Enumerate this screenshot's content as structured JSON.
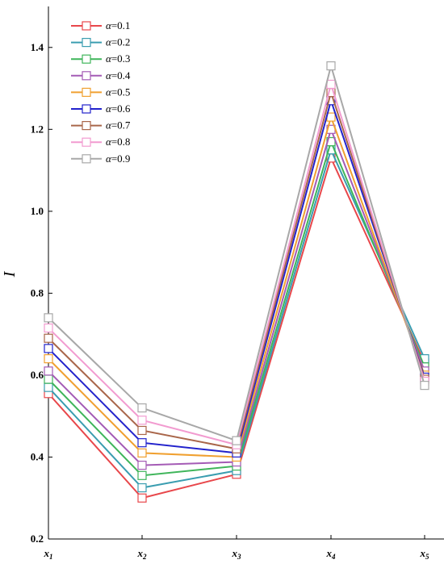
{
  "chart_data": {
    "type": "line",
    "title": "",
    "xlabel": "",
    "ylabel": "I",
    "ylim": [
      0.2,
      1.5
    ],
    "yticks": [
      0.2,
      0.4,
      0.6,
      0.8,
      1.0,
      1.2,
      1.4
    ],
    "ytick_labels": [
      "0.2",
      "0.4",
      "0.6",
      "0.8",
      "1.0",
      "1.2",
      "1.4"
    ],
    "categories": [
      {
        "base": "x",
        "sub": "1"
      },
      {
        "base": "x",
        "sub": "2"
      },
      {
        "base": "x",
        "sub": "3"
      },
      {
        "base": "x",
        "sub": "4"
      },
      {
        "base": "x",
        "sub": "5"
      }
    ],
    "legend_position": "top-left",
    "legend_symbol": "α",
    "series": [
      {
        "name": "=0.1",
        "color": "#e8474b",
        "values": [
          0.555,
          0.3,
          0.358,
          1.13,
          0.63
        ]
      },
      {
        "name": "=0.2",
        "color": "#3a9db0",
        "values": [
          0.57,
          0.325,
          0.367,
          1.15,
          0.64
        ]
      },
      {
        "name": "=0.3",
        "color": "#3fb55a",
        "values": [
          0.59,
          0.355,
          0.378,
          1.17,
          0.62
        ]
      },
      {
        "name": "=0.4",
        "color": "#a45bb5",
        "values": [
          0.61,
          0.38,
          0.388,
          1.2,
          0.61
        ]
      },
      {
        "name": "=0.5",
        "color": "#f0a030",
        "values": [
          0.64,
          0.41,
          0.4,
          1.23,
          0.6
        ]
      },
      {
        "name": "=0.6",
        "color": "#2222cc",
        "values": [
          0.665,
          0.435,
          0.41,
          1.27,
          0.595
        ]
      },
      {
        "name": "=0.7",
        "color": "#a9664a",
        "values": [
          0.69,
          0.465,
          0.42,
          1.29,
          0.59
        ]
      },
      {
        "name": "=0.8",
        "color": "#f29bd0",
        "values": [
          0.715,
          0.49,
          0.43,
          1.31,
          0.585
        ]
      },
      {
        "name": "=0.9",
        "color": "#a8a8a8",
        "values": [
          0.74,
          0.52,
          0.44,
          1.355,
          0.575
        ]
      }
    ]
  }
}
